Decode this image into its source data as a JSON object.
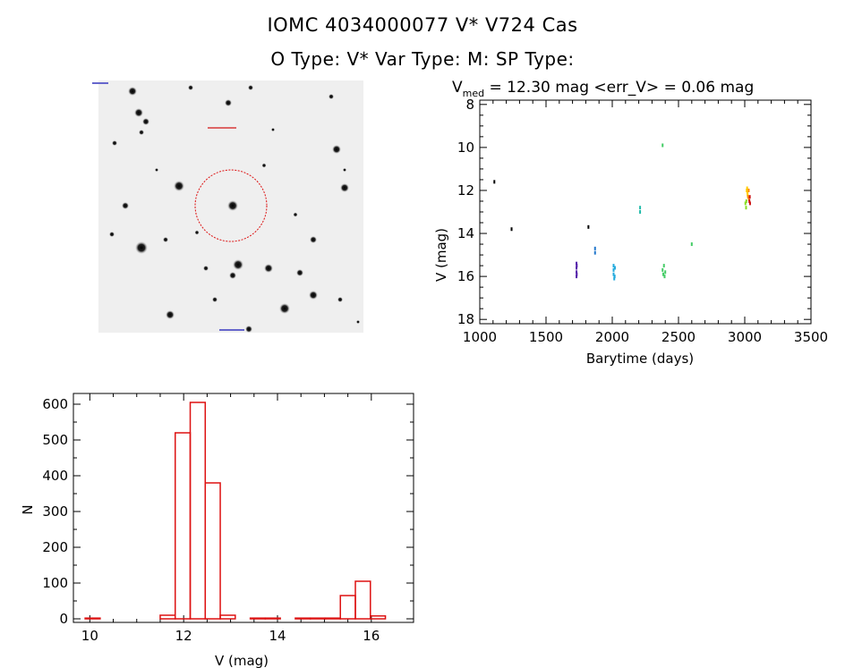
{
  "title_line1": "IOMC 4034000077    V* V724 Cas",
  "title_line2": "O Type: V*  Var Type: M:  SP Type:",
  "colors": {
    "axis": "#000000",
    "hist_bar": "#dd1111",
    "circle": "#dd1111"
  },
  "chart_data": [
    {
      "type": "scatter",
      "title": "V_med = 12.30 mag <err_V> = 0.06 mag",
      "title_main": "V",
      "title_sub": "med",
      "title_rest": " = 12.30 mag <err_V> = 0.06 mag",
      "xlabel": "Barytime (days)",
      "ylabel": "V (mag)",
      "xlim": [
        1000,
        3500
      ],
      "ylim": [
        18.2,
        7.8
      ],
      "xticks": [
        1000,
        1500,
        2000,
        2500,
        3000,
        3500
      ],
      "yticks": [
        8,
        10,
        12,
        14,
        16,
        18
      ],
      "series": [
        {
          "name": "s1",
          "color": "#000000",
          "points": [
            [
              1110,
              11.6
            ],
            [
              1240,
              13.8
            ],
            [
              1820,
              13.7
            ]
          ]
        },
        {
          "name": "s2",
          "color": "#5522aa",
          "points": [
            [
              1730,
              15.4
            ],
            [
              1730,
              15.6
            ],
            [
              1730,
              15.8
            ],
            [
              1730,
              16.0
            ],
            [
              1732,
              15.5
            ],
            [
              1732,
              15.9
            ]
          ]
        },
        {
          "name": "s3",
          "color": "#2277cc",
          "points": [
            [
              1870,
              14.7
            ],
            [
              1870,
              14.9
            ]
          ]
        },
        {
          "name": "s4",
          "color": "#22aadd",
          "points": [
            [
              2010,
              15.5
            ],
            [
              2010,
              15.7
            ],
            [
              2010,
              15.9
            ],
            [
              2015,
              16.1
            ],
            [
              2020,
              15.6
            ],
            [
              2018,
              16.0
            ]
          ]
        },
        {
          "name": "s5",
          "color": "#22bbaa",
          "points": [
            [
              2210,
              12.8
            ],
            [
              2210,
              13.0
            ]
          ]
        },
        {
          "name": "s6",
          "color": "#44cc66",
          "points": [
            [
              2380,
              9.9
            ],
            [
              2380,
              15.7
            ],
            [
              2385,
              15.9
            ],
            [
              2390,
              15.5
            ],
            [
              2395,
              16.0
            ],
            [
              2400,
              15.8
            ],
            [
              2600,
              14.5
            ]
          ]
        },
        {
          "name": "s7",
          "color": "#88dd22",
          "points": [
            [
              3005,
              12.6
            ],
            [
              3010,
              12.8
            ],
            [
              3012,
              12.5
            ]
          ]
        },
        {
          "name": "s8",
          "color": "#ffcc00",
          "points": [
            [
              3015,
              12.0
            ],
            [
              3018,
              11.9
            ],
            [
              3020,
              12.1
            ],
            [
              3022,
              12.2
            ]
          ]
        },
        {
          "name": "s9",
          "color": "#ff8800",
          "points": [
            [
              3025,
              12.3
            ],
            [
              3030,
              12.0
            ],
            [
              3032,
              12.4
            ]
          ]
        },
        {
          "name": "s10",
          "color": "#cc1111",
          "points": [
            [
              3035,
              12.5
            ],
            [
              3038,
              12.3
            ],
            [
              3040,
              12.6
            ]
          ]
        }
      ]
    },
    {
      "type": "bar",
      "title": "",
      "xlabel": "V (mag)",
      "ylabel": "N",
      "xlim": [
        9.65,
        16.9
      ],
      "ylim": [
        -10,
        630
      ],
      "xticks": [
        10,
        12,
        14,
        16
      ],
      "yticks": [
        0,
        100,
        200,
        300,
        400,
        500,
        600
      ],
      "bin_width": 0.32,
      "bins": [
        {
          "start": 9.9,
          "value": 2
        },
        {
          "start": 11.5,
          "value": 10
        },
        {
          "start": 11.82,
          "value": 520
        },
        {
          "start": 12.14,
          "value": 605
        },
        {
          "start": 12.46,
          "value": 380
        },
        {
          "start": 12.78,
          "value": 10
        },
        {
          "start": 13.42,
          "value": 2
        },
        {
          "start": 13.74,
          "value": 2
        },
        {
          "start": 14.38,
          "value": 2
        },
        {
          "start": 14.7,
          "value": 2
        },
        {
          "start": 15.02,
          "value": 2
        },
        {
          "start": 15.34,
          "value": 65
        },
        {
          "start": 15.66,
          "value": 105
        },
        {
          "start": 15.98,
          "value": 8
        }
      ]
    }
  ]
}
